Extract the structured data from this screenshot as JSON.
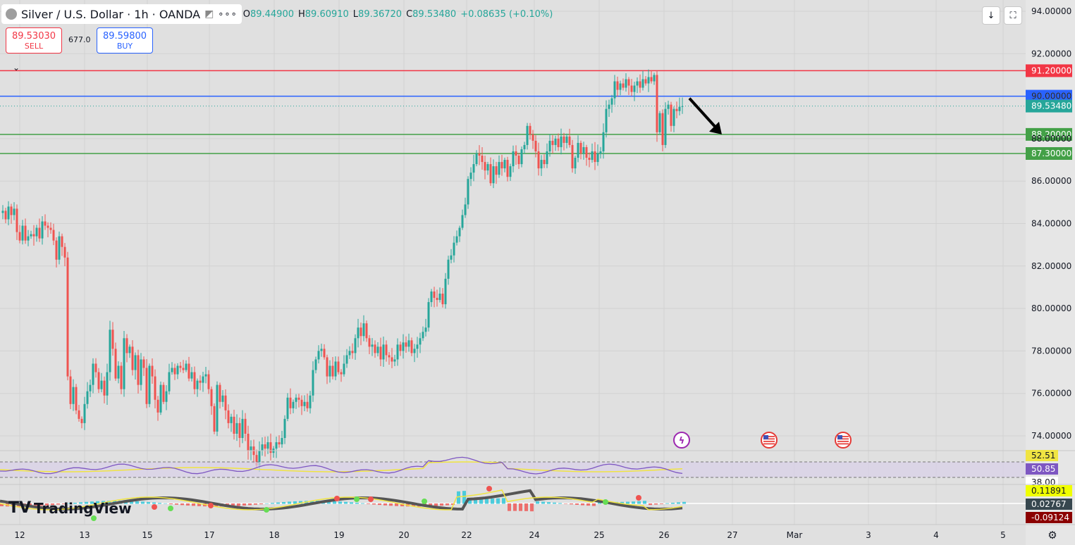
{
  "header": {
    "symbol": "Silver / U.S. Dollar · 1h · OANDA",
    "open_label": "O",
    "open": "89.44900",
    "high_label": "H",
    "high": "89.60910",
    "low_label": "L",
    "low": "89.36720",
    "close_label": "C",
    "close": "89.53480",
    "change": "+0.08635 (+0.10%)",
    "more_icon": "more-icon"
  },
  "trade": {
    "sell_price": "89.53030",
    "sell_label": "SELL",
    "spread": "677.0",
    "buy_price": "89.59800",
    "buy_label": "BUY"
  },
  "brand": {
    "name": "TradingView"
  },
  "colors": {
    "bull": "#26a69a",
    "bear": "#ef5350",
    "resistance": "#f23645",
    "pivot": "#2962ff",
    "support": "#43a047",
    "rsi": "#7e57c2",
    "macd_signal": "#f0e442"
  },
  "chart_data": {
    "type": "candlestick",
    "y_axis_ticks": [
      "94.00000",
      "92.00000",
      "90.00000",
      "88.00000",
      "86.00000",
      "84.00000",
      "82.00000",
      "80.00000",
      "78.00000",
      "76.00000",
      "74.00000"
    ],
    "ylim": [
      72.8,
      94.5
    ],
    "x_axis_ticks": [
      "12",
      "13",
      "15",
      "17",
      "18",
      "19",
      "20",
      "22",
      "24",
      "25",
      "26",
      "27",
      "Mar",
      "3",
      "4",
      "5"
    ],
    "horizontal_levels": [
      {
        "label": "91.20000",
        "value": 91.2,
        "color": "#f23645"
      },
      {
        "label": "90.00000",
        "value": 90.0,
        "color": "#2962ff"
      },
      {
        "label": "88.20000",
        "value": 88.2,
        "color": "#43a047"
      },
      {
        "label": "87.30000",
        "value": 87.3,
        "color": "#43a047"
      }
    ],
    "last_price": {
      "label": "89.53480",
      "value": 89.5348
    },
    "price_path": [
      {
        "x": 0,
        "y": 84.5
      },
      {
        "x": 4,
        "y": 84.6
      },
      {
        "x": 8,
        "y": 84.2
      },
      {
        "x": 12,
        "y": 84.8
      },
      {
        "x": 16,
        "y": 84.4
      },
      {
        "x": 20,
        "y": 84.7
      },
      {
        "x": 24,
        "y": 83.6
      },
      {
        "x": 28,
        "y": 83.2
      },
      {
        "x": 32,
        "y": 83.9
      },
      {
        "x": 36,
        "y": 83.2
      },
      {
        "x": 40,
        "y": 83.4
      },
      {
        "x": 44,
        "y": 83.5
      },
      {
        "x": 48,
        "y": 83.4
      },
      {
        "x": 52,
        "y": 83.8
      },
      {
        "x": 56,
        "y": 83.3
      },
      {
        "x": 60,
        "y": 84.1
      },
      {
        "x": 64,
        "y": 83.9
      },
      {
        "x": 68,
        "y": 83.8
      },
      {
        "x": 72,
        "y": 83.7
      },
      {
        "x": 76,
        "y": 83.2
      },
      {
        "x": 80,
        "y": 82.3
      },
      {
        "x": 84,
        "y": 83.4
      },
      {
        "x": 88,
        "y": 82.9
      },
      {
        "x": 92,
        "y": 82.4
      },
      {
        "x": 96,
        "y": 76.8
      },
      {
        "x": 100,
        "y": 75.5
      },
      {
        "x": 104,
        "y": 76.3
      },
      {
        "x": 108,
        "y": 75.2
      },
      {
        "x": 112,
        "y": 74.8
      },
      {
        "x": 116,
        "y": 74.6
      },
      {
        "x": 120,
        "y": 75.5
      },
      {
        "x": 124,
        "y": 76.1
      },
      {
        "x": 128,
        "y": 76.4
      },
      {
        "x": 132,
        "y": 77.4
      },
      {
        "x": 136,
        "y": 77.0
      },
      {
        "x": 140,
        "y": 76.2
      },
      {
        "x": 144,
        "y": 76.6
      },
      {
        "x": 148,
        "y": 75.9
      },
      {
        "x": 152,
        "y": 77.0
      },
      {
        "x": 156,
        "y": 79.0
      },
      {
        "x": 160,
        "y": 78.1
      },
      {
        "x": 164,
        "y": 76.7
      },
      {
        "x": 168,
        "y": 77.3
      },
      {
        "x": 172,
        "y": 76.2
      },
      {
        "x": 176,
        "y": 78.6
      },
      {
        "x": 180,
        "y": 77.9
      },
      {
        "x": 184,
        "y": 78.2
      },
      {
        "x": 188,
        "y": 77.1
      },
      {
        "x": 192,
        "y": 77.8
      },
      {
        "x": 196,
        "y": 76.4
      },
      {
        "x": 200,
        "y": 77.6
      },
      {
        "x": 204,
        "y": 77.2
      },
      {
        "x": 208,
        "y": 75.5
      },
      {
        "x": 212,
        "y": 77.3
      },
      {
        "x": 216,
        "y": 76.8
      },
      {
        "x": 220,
        "y": 75.7
      },
      {
        "x": 224,
        "y": 75.1
      },
      {
        "x": 228,
        "y": 76.4
      },
      {
        "x": 232,
        "y": 75.6
      },
      {
        "x": 236,
        "y": 76.1
      },
      {
        "x": 240,
        "y": 77.0
      },
      {
        "x": 244,
        "y": 77.2
      },
      {
        "x": 248,
        "y": 76.9
      },
      {
        "x": 252,
        "y": 77.3
      },
      {
        "x": 256,
        "y": 77.2
      },
      {
        "x": 260,
        "y": 77.1
      },
      {
        "x": 264,
        "y": 77.4
      },
      {
        "x": 268,
        "y": 76.7
      },
      {
        "x": 272,
        "y": 77.0
      },
      {
        "x": 276,
        "y": 76.2
      },
      {
        "x": 280,
        "y": 76.6
      },
      {
        "x": 284,
        "y": 76.5
      },
      {
        "x": 288,
        "y": 76.8
      },
      {
        "x": 292,
        "y": 76.9
      },
      {
        "x": 296,
        "y": 76.2
      },
      {
        "x": 300,
        "y": 75.4
      },
      {
        "x": 304,
        "y": 74.2
      },
      {
        "x": 308,
        "y": 76.4
      },
      {
        "x": 312,
        "y": 75.6
      },
      {
        "x": 316,
        "y": 75.9
      },
      {
        "x": 320,
        "y": 75.2
      },
      {
        "x": 324,
        "y": 74.6
      },
      {
        "x": 328,
        "y": 74.9
      },
      {
        "x": 332,
        "y": 74.1
      },
      {
        "x": 336,
        "y": 74.6
      },
      {
        "x": 340,
        "y": 73.9
      },
      {
        "x": 344,
        "y": 74.8
      },
      {
        "x": 348,
        "y": 74.1
      },
      {
        "x": 352,
        "y": 73.3
      },
      {
        "x": 356,
        "y": 73.5
      },
      {
        "x": 360,
        "y": 73.1
      },
      {
        "x": 364,
        "y": 72.6
      },
      {
        "x": 368,
        "y": 73.3
      },
      {
        "x": 372,
        "y": 73.6
      },
      {
        "x": 376,
        "y": 73.4
      },
      {
        "x": 380,
        "y": 73.7
      },
      {
        "x": 384,
        "y": 73.2
      },
      {
        "x": 388,
        "y": 73.4
      },
      {
        "x": 392,
        "y": 73.7
      },
      {
        "x": 396,
        "y": 73.6
      },
      {
        "x": 400,
        "y": 73.9
      },
      {
        "x": 404,
        "y": 74.8
      },
      {
        "x": 408,
        "y": 75.8
      },
      {
        "x": 412,
        "y": 75.3
      },
      {
        "x": 416,
        "y": 75.6
      },
      {
        "x": 420,
        "y": 75.8
      },
      {
        "x": 424,
        "y": 75.7
      },
      {
        "x": 428,
        "y": 75.4
      },
      {
        "x": 432,
        "y": 75.6
      },
      {
        "x": 436,
        "y": 75.3
      },
      {
        "x": 440,
        "y": 75.9
      },
      {
        "x": 444,
        "y": 77.1
      },
      {
        "x": 448,
        "y": 77.6
      },
      {
        "x": 452,
        "y": 78.0
      },
      {
        "x": 456,
        "y": 78.1
      },
      {
        "x": 460,
        "y": 77.7
      },
      {
        "x": 464,
        "y": 76.8
      },
      {
        "x": 468,
        "y": 77.3
      },
      {
        "x": 472,
        "y": 76.8
      },
      {
        "x": 476,
        "y": 77.5
      },
      {
        "x": 480,
        "y": 77.0
      },
      {
        "x": 484,
        "y": 76.9
      },
      {
        "x": 488,
        "y": 77.4
      },
      {
        "x": 492,
        "y": 77.8
      },
      {
        "x": 496,
        "y": 78.0
      },
      {
        "x": 500,
        "y": 77.9
      },
      {
        "x": 504,
        "y": 78.6
      },
      {
        "x": 508,
        "y": 79.1
      },
      {
        "x": 512,
        "y": 78.7
      },
      {
        "x": 516,
        "y": 79.3
      },
      {
        "x": 520,
        "y": 78.6
      },
      {
        "x": 524,
        "y": 78.2
      },
      {
        "x": 528,
        "y": 78.3
      },
      {
        "x": 532,
        "y": 77.9
      },
      {
        "x": 536,
        "y": 78.2
      },
      {
        "x": 540,
        "y": 77.6
      },
      {
        "x": 544,
        "y": 78.3
      },
      {
        "x": 548,
        "y": 77.8
      },
      {
        "x": 552,
        "y": 77.7
      },
      {
        "x": 556,
        "y": 77.5
      },
      {
        "x": 560,
        "y": 77.6
      },
      {
        "x": 564,
        "y": 78.3
      },
      {
        "x": 568,
        "y": 78.0
      },
      {
        "x": 572,
        "y": 78.4
      },
      {
        "x": 576,
        "y": 78.2
      },
      {
        "x": 580,
        "y": 78.5
      },
      {
        "x": 584,
        "y": 77.9
      },
      {
        "x": 588,
        "y": 78.1
      },
      {
        "x": 592,
        "y": 78.3
      },
      {
        "x": 596,
        "y": 78.6
      },
      {
        "x": 600,
        "y": 78.9
      },
      {
        "x": 604,
        "y": 79.1
      },
      {
        "x": 608,
        "y": 80.3
      },
      {
        "x": 612,
        "y": 80.8
      },
      {
        "x": 616,
        "y": 80.5
      },
      {
        "x": 620,
        "y": 80.4
      },
      {
        "x": 624,
        "y": 80.7
      },
      {
        "x": 628,
        "y": 80.2
      },
      {
        "x": 632,
        "y": 81.4
      },
      {
        "x": 636,
        "y": 82.3
      },
      {
        "x": 640,
        "y": 82.5
      },
      {
        "x": 644,
        "y": 83.1
      },
      {
        "x": 648,
        "y": 83.4
      },
      {
        "x": 652,
        "y": 83.8
      },
      {
        "x": 656,
        "y": 84.4
      },
      {
        "x": 660,
        "y": 84.9
      },
      {
        "x": 664,
        "y": 86.1
      },
      {
        "x": 668,
        "y": 86.4
      },
      {
        "x": 672,
        "y": 86.8
      },
      {
        "x": 676,
        "y": 87.3
      },
      {
        "x": 680,
        "y": 87.2
      },
      {
        "x": 684,
        "y": 86.9
      },
      {
        "x": 688,
        "y": 86.5
      },
      {
        "x": 692,
        "y": 86.8
      },
      {
        "x": 696,
        "y": 85.9
      },
      {
        "x": 700,
        "y": 86.7
      },
      {
        "x": 704,
        "y": 86.3
      },
      {
        "x": 708,
        "y": 86.9
      },
      {
        "x": 712,
        "y": 86.6
      },
      {
        "x": 716,
        "y": 87.0
      },
      {
        "x": 720,
        "y": 86.2
      },
      {
        "x": 724,
        "y": 86.7
      },
      {
        "x": 728,
        "y": 87.4
      },
      {
        "x": 732,
        "y": 87.2
      },
      {
        "x": 736,
        "y": 86.8
      },
      {
        "x": 740,
        "y": 87.5
      },
      {
        "x": 744,
        "y": 87.7
      },
      {
        "x": 748,
        "y": 88.6
      },
      {
        "x": 752,
        "y": 88.2
      },
      {
        "x": 756,
        "y": 87.9
      },
      {
        "x": 760,
        "y": 87.4
      },
      {
        "x": 764,
        "y": 86.6
      },
      {
        "x": 768,
        "y": 87.0
      },
      {
        "x": 772,
        "y": 86.8
      },
      {
        "x": 776,
        "y": 87.4
      },
      {
        "x": 780,
        "y": 87.9
      },
      {
        "x": 784,
        "y": 87.7
      },
      {
        "x": 788,
        "y": 88.0
      },
      {
        "x": 792,
        "y": 87.6
      },
      {
        "x": 796,
        "y": 88.1
      },
      {
        "x": 800,
        "y": 87.8
      },
      {
        "x": 804,
        "y": 88.1
      },
      {
        "x": 808,
        "y": 87.7
      },
      {
        "x": 812,
        "y": 86.6
      },
      {
        "x": 816,
        "y": 87.1
      },
      {
        "x": 820,
        "y": 87.8
      },
      {
        "x": 824,
        "y": 87.3
      },
      {
        "x": 828,
        "y": 87.6
      },
      {
        "x": 832,
        "y": 87.1
      },
      {
        "x": 836,
        "y": 87.0
      },
      {
        "x": 840,
        "y": 87.4
      },
      {
        "x": 844,
        "y": 86.9
      },
      {
        "x": 848,
        "y": 87.3
      },
      {
        "x": 852,
        "y": 87.4
      },
      {
        "x": 856,
        "y": 88.3
      },
      {
        "x": 860,
        "y": 89.4
      },
      {
        "x": 864,
        "y": 89.6
      },
      {
        "x": 868,
        "y": 89.9
      },
      {
        "x": 872,
        "y": 90.7
      },
      {
        "x": 876,
        "y": 90.3
      },
      {
        "x": 880,
        "y": 90.6
      },
      {
        "x": 884,
        "y": 90.4
      },
      {
        "x": 888,
        "y": 90.8
      },
      {
        "x": 892,
        "y": 90.5
      },
      {
        "x": 896,
        "y": 90.2
      },
      {
        "x": 900,
        "y": 90.5
      },
      {
        "x": 904,
        "y": 90.7
      },
      {
        "x": 908,
        "y": 90.4
      },
      {
        "x": 912,
        "y": 90.8
      },
      {
        "x": 916,
        "y": 90.6
      },
      {
        "x": 920,
        "y": 90.9
      },
      {
        "x": 924,
        "y": 90.7
      },
      {
        "x": 928,
        "y": 91.0
      },
      {
        "x": 932,
        "y": 88.3
      },
      {
        "x": 936,
        "y": 89.2
      },
      {
        "x": 940,
        "y": 87.7
      },
      {
        "x": 944,
        "y": 89.4
      },
      {
        "x": 948,
        "y": 89.6
      },
      {
        "x": 952,
        "y": 88.6
      },
      {
        "x": 956,
        "y": 89.4
      },
      {
        "x": 960,
        "y": 89.3
      },
      {
        "x": 964,
        "y": 89.5
      },
      {
        "x": 968,
        "y": 89.53
      }
    ],
    "arrow": {
      "from": {
        "x": 978,
        "y": 89.9
      },
      "to": {
        "x": 1024,
        "y": 88.2
      }
    },
    "events": [
      {
        "x": 967,
        "type": "earnings"
      },
      {
        "x": 1091,
        "type": "us-flag"
      },
      {
        "x": 1196,
        "type": "us-flag"
      }
    ],
    "rsi": {
      "labels": [
        "52.51",
        "50.85",
        "38.00"
      ],
      "levels": [
        52.51,
        50.85,
        38.0
      ]
    },
    "macd": {
      "labels": [
        "0.11891",
        "0.02767",
        "-0.09124"
      ],
      "values": [
        0.11891,
        0.02767,
        -0.09124
      ]
    }
  },
  "toolbar": {
    "download_icon": "download-icon",
    "fullscreen_icon": "fullscreen-icon",
    "settings_icon": "gear-icon"
  }
}
